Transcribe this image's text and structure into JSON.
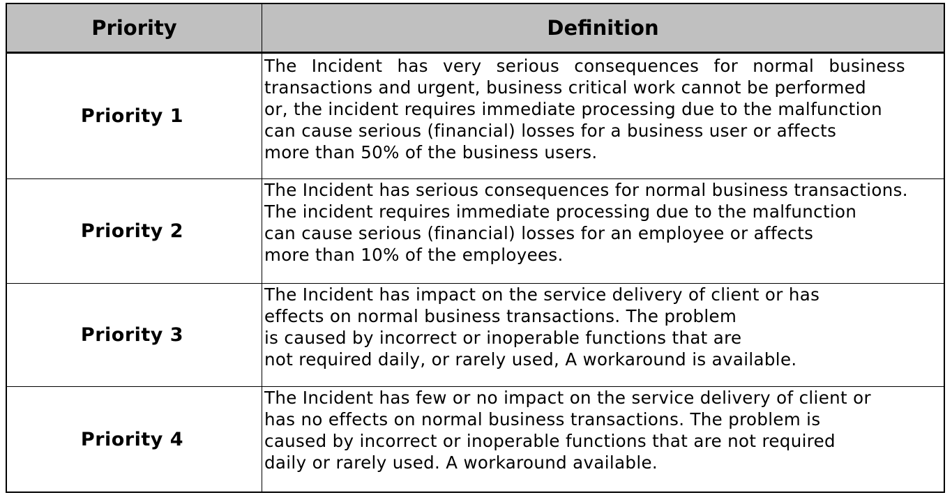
{
  "header": {
    "priority": "Priority",
    "definition": "Definition"
  },
  "rows": [
    {
      "priority": "Priority 1",
      "lines": [
        "The Incident has very serious consequences for normal business",
        "transactions and urgent, business critical work cannot be performed",
        "or, the incident requires immediate processing due to the malfunction",
        "can cause serious (financial) losses for a business user or affects",
        "more than 50% of the business  users."
      ]
    },
    {
      "priority": "Priority 2",
      "lines": [
        "The Incident has serious consequences for normal business transactions.",
        "The incident requires immediate processing due to the malfunction",
        "can cause serious (financial) losses for an employee or affects",
        "more than 10% of the employees."
      ]
    },
    {
      "priority": "Priority 3",
      "lines": [
        "The Incident has impact on the service delivery of client or has",
        "effects on normal business transactions. The problem",
        "is caused by incorrect or inoperable functions that are",
        "not required daily, or rarely used, A workaround is available."
      ]
    },
    {
      "priority": "Priority 4",
      "lines": [
        "The Incident has few or no impact on the service delivery of client or",
        "has no effects on normal business transactions. The problem is",
        "caused by incorrect or inoperable functions that are not required",
        "daily or rarely used. A workaround available."
      ]
    }
  ]
}
